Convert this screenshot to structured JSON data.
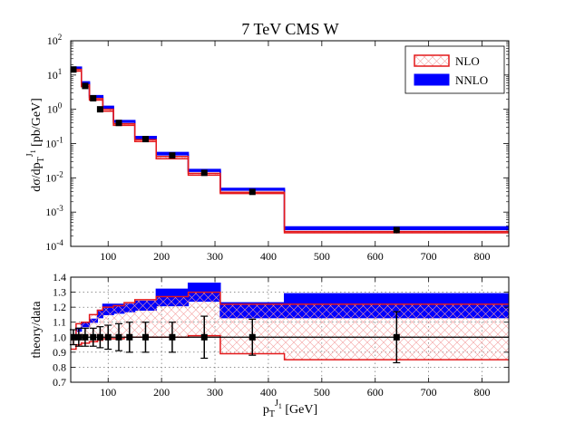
{
  "chart_data": [
    {
      "type": "step",
      "title": "7 TeV CMS W",
      "xlabel": "",
      "ylabel_prefix": "dσ/dp",
      "ylabel_sub": "T",
      "ylabel_sup": "J",
      "ylabel_supsub": "1",
      "ylabel_suffix": " [pb/GeV]",
      "yscale": "log",
      "xlim": [
        30,
        850
      ],
      "ylim": [
        0.0001,
        100
      ],
      "xticks": [
        100,
        200,
        300,
        400,
        500,
        600,
        700,
        800
      ],
      "yticks": [
        {
          "value": 0.0001,
          "base": "10",
          "exp": "-4"
        },
        {
          "value": 0.001,
          "base": "10",
          "exp": "-3"
        },
        {
          "value": 0.01,
          "base": "10",
          "exp": "-2"
        },
        {
          "value": 0.1,
          "base": "10",
          "exp": "-1"
        },
        {
          "value": 1,
          "base": "10",
          "exp": "0"
        },
        {
          "value": 10,
          "base": "10",
          "exp": "1"
        },
        {
          "value": 100,
          "base": "10",
          "exp": "2"
        }
      ],
      "bin_edges": [
        30,
        40,
        50,
        65,
        80,
        90,
        110,
        130,
        150,
        190,
        250,
        310,
        430,
        850
      ],
      "nlo": {
        "name": "NLO",
        "lo": [
          13.0,
          13.0,
          4.6,
          1.85,
          1.85,
          0.88,
          0.34,
          0.34,
          0.115,
          0.036,
          0.012,
          0.0035,
          0.00025
        ],
        "hi": [
          14.6,
          14.6,
          5.2,
          2.05,
          2.05,
          1.0,
          0.38,
          0.38,
          0.13,
          0.042,
          0.0135,
          0.0038,
          0.00027
        ]
      },
      "nnlo": {
        "name": "NNLO",
        "lo": [
          15.5,
          15.5,
          5.6,
          2.25,
          2.25,
          1.08,
          0.42,
          0.42,
          0.14,
          0.047,
          0.0155,
          0.0044,
          0.00031
        ],
        "hi": [
          17.0,
          17.0,
          6.3,
          2.5,
          2.5,
          1.22,
          0.47,
          0.47,
          0.16,
          0.055,
          0.0175,
          0.0049,
          0.00037
        ]
      },
      "data_points": [
        {
          "x": 35,
          "y": 14.5,
          "err": 0.06
        },
        {
          "x": 57,
          "y": 4.8,
          "err": 0.06
        },
        {
          "x": 72,
          "y": 2.1,
          "err": 0.06
        },
        {
          "x": 85,
          "y": 1.0,
          "err": 0.07
        },
        {
          "x": 120,
          "y": 0.4,
          "err": 0.08
        },
        {
          "x": 170,
          "y": 0.135,
          "err": 0.09
        },
        {
          "x": 220,
          "y": 0.045,
          "err": 0.1
        },
        {
          "x": 280,
          "y": 0.014,
          "err": 0.14
        },
        {
          "x": 370,
          "y": 0.0039,
          "err": 0.12
        },
        {
          "x": 640,
          "y": 0.0003,
          "err": 0.2
        }
      ],
      "legend": {
        "position": "top-right",
        "entries": [
          "NLO",
          "NNLO"
        ]
      },
      "colors": {
        "nlo": "#e41a1c",
        "nnlo": "#0000ff",
        "data": "#000000"
      }
    },
    {
      "type": "step",
      "xlabel_prefix": "p",
      "xlabel_sub": "T",
      "xlabel_sup": "J",
      "xlabel_supsub": "1",
      "xlabel_suffix": " [GeV]",
      "ylabel": "theory/data",
      "xlim": [
        30,
        850
      ],
      "ylim": [
        0.7,
        1.4
      ],
      "xticks": [
        100,
        200,
        300,
        400,
        500,
        600,
        700,
        800
      ],
      "yticks": [
        0.7,
        0.8,
        0.9,
        1.0,
        1.1,
        1.2,
        1.3,
        1.4
      ],
      "ytick_labels": [
        "0.7",
        "0.8",
        "0.9",
        "1.0",
        "1.1",
        "1.2",
        "1.3",
        "1.4"
      ],
      "grid": true,
      "bin_edges": [
        30,
        40,
        50,
        65,
        80,
        90,
        110,
        130,
        150,
        190,
        250,
        310,
        430,
        850
      ],
      "nlo_ratio": {
        "lo": [
          0.92,
          0.95,
          0.96,
          0.97,
          0.98,
          0.99,
          0.99,
          1.0,
          1.0,
          1.0,
          1.01,
          0.89,
          0.85
        ],
        "hi": [
          1.0,
          1.09,
          1.1,
          1.15,
          1.18,
          1.2,
          1.21,
          1.23,
          1.25,
          1.27,
          1.3,
          1.22,
          1.22
        ]
      },
      "nnlo_ratio": {
        "lo": [
          1.0,
          1.04,
          1.07,
          1.1,
          1.13,
          1.15,
          1.16,
          1.17,
          1.18,
          1.21,
          1.24,
          1.13,
          1.13
        ],
        "hi": [
          1.0,
          1.06,
          1.1,
          1.12,
          1.18,
          1.22,
          1.22,
          1.22,
          1.24,
          1.32,
          1.36,
          1.23,
          1.29
        ]
      },
      "data_points": [
        {
          "x": 35,
          "y": 1.0,
          "err": 0.05
        },
        {
          "x": 45,
          "y": 1.0,
          "err": 0.06
        },
        {
          "x": 57,
          "y": 1.0,
          "err": 0.06
        },
        {
          "x": 72,
          "y": 1.0,
          "err": 0.06
        },
        {
          "x": 85,
          "y": 1.0,
          "err": 0.07
        },
        {
          "x": 100,
          "y": 1.0,
          "err": 0.08
        },
        {
          "x": 120,
          "y": 1.0,
          "err": 0.09
        },
        {
          "x": 140,
          "y": 1.0,
          "err": 0.1
        },
        {
          "x": 170,
          "y": 1.0,
          "err": 0.1
        },
        {
          "x": 220,
          "y": 1.0,
          "err": 0.1
        },
        {
          "x": 280,
          "y": 1.0,
          "err": 0.14
        },
        {
          "x": 370,
          "y": 1.0,
          "err": 0.12
        },
        {
          "x": 640,
          "y": 1.0,
          "err": 0.17
        }
      ]
    }
  ]
}
